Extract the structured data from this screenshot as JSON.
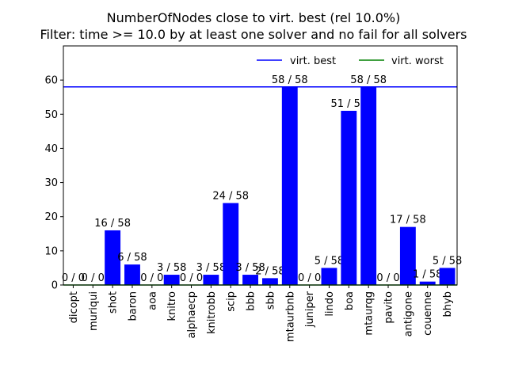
{
  "chart_data": {
    "type": "bar",
    "title": "NumberOfNodes close to virt. best (rel 10.0%)",
    "subtitle": "Filter: time >= 10.0 by at least one solver and no fail for all solvers",
    "xlabel": "",
    "ylabel": "",
    "ylim": [
      0,
      70
    ],
    "yticks": [
      0,
      10,
      20,
      30,
      40,
      50,
      60
    ],
    "grid": false,
    "legend_position": "top-right",
    "categories": [
      "dicopt",
      "muriqui",
      "shot",
      "baron",
      "aoa",
      "knitro",
      "alphaecp",
      "knitrobb",
      "scip",
      "bbb",
      "sbb",
      "mtaurbnb",
      "juniper",
      "lindo",
      "boa",
      "mtaurqg",
      "pavito",
      "antigone",
      "couenne",
      "bhyb"
    ],
    "values": [
      0,
      0,
      16,
      6,
      0,
      3,
      0,
      3,
      24,
      3,
      2,
      58,
      0,
      5,
      51,
      58,
      0,
      17,
      1,
      5
    ],
    "bar_labels": [
      "0 / 0",
      "0 / 0",
      "16 / 58",
      "6 / 58",
      "0 / 0",
      "3 / 58",
      "0 / 0",
      "3 / 58",
      "24 / 58",
      "3 / 58",
      "2 / 58",
      "58 / 58",
      "0 / 0",
      "5 / 58",
      "51 / 58",
      "58 / 58",
      "0 / 0",
      "17 / 58",
      "1 / 58",
      "5 / 58"
    ],
    "bar_color": "#0000ff",
    "reference_lines": [
      {
        "name": "virt. best",
        "value": 58,
        "color": "#0000ff"
      },
      {
        "name": "virt. worst",
        "value": 0,
        "color": "#008000"
      }
    ]
  }
}
